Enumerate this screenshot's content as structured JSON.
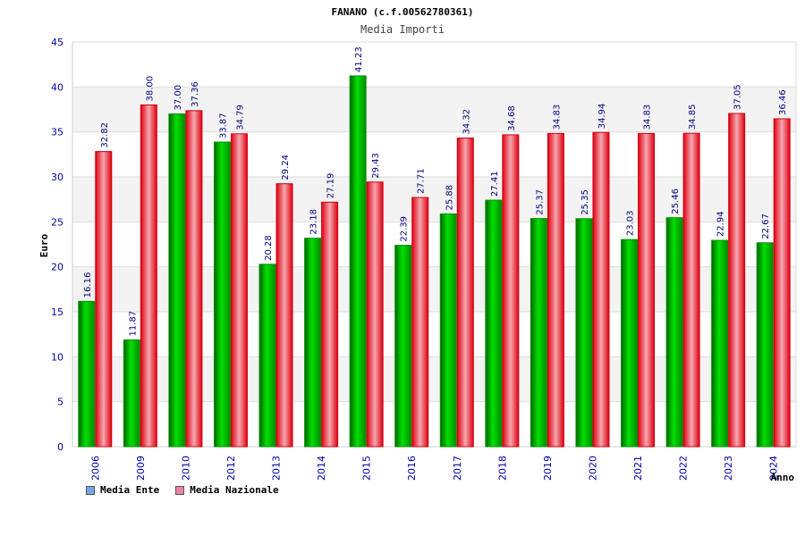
{
  "header": {
    "title": "FANANO (c.f.00562780361)",
    "subtitle": "Media Importi"
  },
  "legend": {
    "items": [
      {
        "label": "Media Ente",
        "color": "#6ea6e8"
      },
      {
        "label": "Media Nazionale",
        "color": "#e880a8"
      }
    ]
  },
  "chart_data": {
    "type": "bar",
    "title": "FANANO (c.f.00562780361)",
    "subtitle": "Media Importi",
    "xlabel": "Anno",
    "ylabel": "Euro",
    "ylim": [
      0,
      45
    ],
    "yticks": [
      0,
      5,
      10,
      15,
      20,
      25,
      30,
      35,
      40,
      45
    ],
    "grid": true,
    "legend_position": "bottom-left",
    "categories": [
      "2006",
      "2009",
      "2010",
      "2012",
      "2013",
      "2014",
      "2015",
      "2016",
      "2017",
      "2018",
      "2019",
      "2020",
      "2021",
      "2022",
      "2023",
      "2024"
    ],
    "series": [
      {
        "name": "Media Ente",
        "color": "#00b400",
        "values": [
          16.16,
          11.87,
          37.0,
          33.87,
          20.28,
          23.18,
          41.23,
          22.39,
          25.88,
          27.41,
          25.37,
          25.35,
          23.03,
          25.46,
          22.94,
          22.67
        ],
        "labels": [
          "16.16",
          "11.87",
          "37.00",
          "33.87",
          "20.28",
          "23.18",
          "41.23",
          "22.39",
          "25.88",
          "27.41",
          "25.37",
          "25.35",
          "23.03",
          "25.46",
          "22.94",
          "22.67"
        ]
      },
      {
        "name": "Media Nazionale",
        "color": "#e81c28",
        "values": [
          32.82,
          38.0,
          37.36,
          34.79,
          29.24,
          27.19,
          29.43,
          27.71,
          34.32,
          34.68,
          34.83,
          34.94,
          34.83,
          34.85,
          37.05,
          36.46
        ],
        "labels": [
          "32.82",
          "38.00",
          "37.36",
          "34.79",
          "29.24",
          "27.19",
          "29.43",
          "27.71",
          "34.32",
          "34.68",
          "34.83",
          "34.94",
          "34.83",
          "34.85",
          "37.05",
          "36.46"
        ]
      }
    ]
  }
}
